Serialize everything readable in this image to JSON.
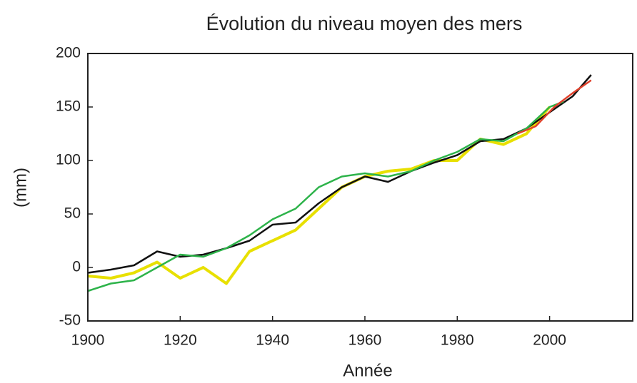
{
  "chart_data": {
    "type": "line",
    "title": "Évolution du niveau moyen des mers",
    "xlabel": "Année",
    "ylabel": "(mm)",
    "xlim": [
      1900,
      2018
    ],
    "xticks": [
      1900,
      1920,
      1940,
      1960,
      1980,
      2000
    ],
    "ylim": [
      -50,
      200
    ],
    "yticks": [
      -50,
      0,
      50,
      100,
      150,
      200
    ],
    "series": [
      {
        "color": "#e8e000",
        "x": [
          1900,
          1905,
          1910,
          1915,
          1920,
          1925,
          1930,
          1935,
          1940,
          1945,
          1950,
          1955,
          1960,
          1965,
          1970,
          1975,
          1980,
          1985,
          1990,
          1995,
          2000
        ],
        "values": [
          -8,
          -10,
          -5,
          5,
          -10,
          0,
          -15,
          15,
          25,
          35,
          55,
          75,
          85,
          90,
          92,
          100,
          100,
          120,
          115,
          125,
          150
        ]
      },
      {
        "color": "#111111",
        "x": [
          1900,
          1905,
          1910,
          1915,
          1920,
          1925,
          1930,
          1935,
          1940,
          1945,
          1950,
          1955,
          1960,
          1965,
          1970,
          1975,
          1980,
          1985,
          1990,
          1995,
          2000,
          2005,
          2009
        ],
        "values": [
          -5,
          -2,
          2,
          15,
          10,
          12,
          18,
          25,
          40,
          42,
          60,
          75,
          85,
          80,
          90,
          98,
          105,
          118,
          120,
          130,
          145,
          160,
          180
        ]
      },
      {
        "color": "#2db34a",
        "x": [
          1900,
          1905,
          1910,
          1915,
          1920,
          1925,
          1930,
          1935,
          1940,
          1945,
          1950,
          1955,
          1960,
          1965,
          1970,
          1975,
          1980,
          1985,
          1990,
          1995,
          2000,
          2003
        ],
        "values": [
          -22,
          -15,
          -12,
          0,
          12,
          10,
          18,
          30,
          45,
          55,
          75,
          85,
          88,
          85,
          90,
          100,
          108,
          120,
          118,
          130,
          150,
          155
        ]
      },
      {
        "color": "#e0402a",
        "x": [
          1993,
          1997,
          2001,
          2005,
          2009
        ],
        "values": [
          125,
          132,
          150,
          163,
          175
        ]
      }
    ]
  }
}
